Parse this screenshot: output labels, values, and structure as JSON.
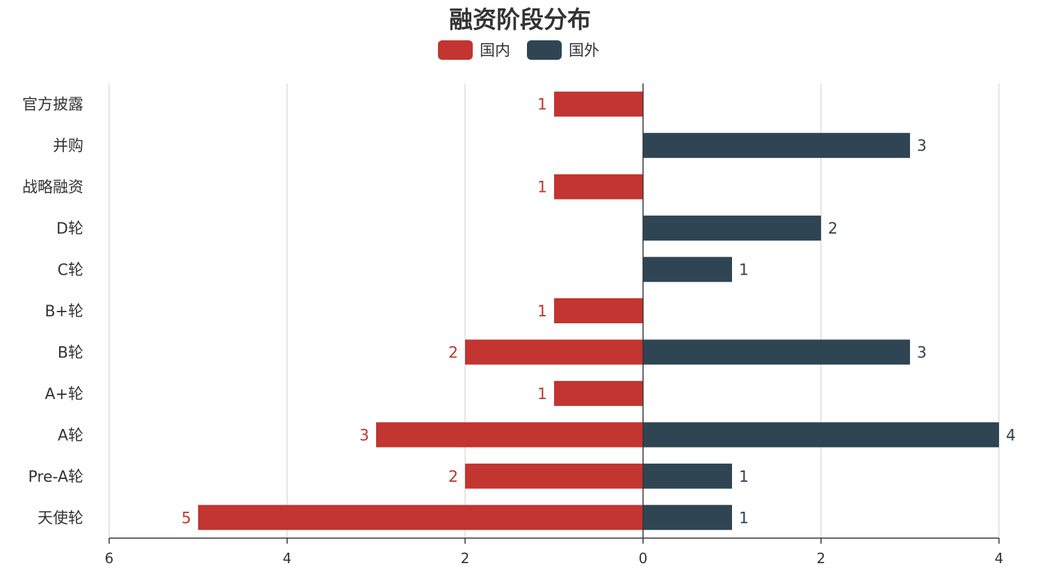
{
  "chart_data": {
    "type": "bar",
    "orientation": "horizontal-diverging",
    "title": "融资阶段分布",
    "categories": [
      "官方披露",
      "并购",
      "战略融资",
      "D轮",
      "C轮",
      "B+轮",
      "B轮",
      "A+轮",
      "A轮",
      "Pre-A轮",
      "天使轮"
    ],
    "series": [
      {
        "name": "国内",
        "color": "#c23531",
        "direction": "left",
        "values": [
          1,
          0,
          1,
          0,
          0,
          1,
          2,
          1,
          3,
          2,
          5
        ]
      },
      {
        "name": "国外",
        "color": "#2f4554",
        "direction": "right",
        "values": [
          0,
          3,
          0,
          2,
          1,
          0,
          3,
          0,
          4,
          1,
          1
        ]
      }
    ],
    "xlim": [
      -6,
      4
    ],
    "x_ticks": [
      -6,
      -4,
      -2,
      0,
      2,
      4
    ],
    "x_tick_labels": [
      "6",
      "4",
      "2",
      "0",
      "2",
      "4"
    ],
    "legend_position": "top-center",
    "grid": true
  }
}
